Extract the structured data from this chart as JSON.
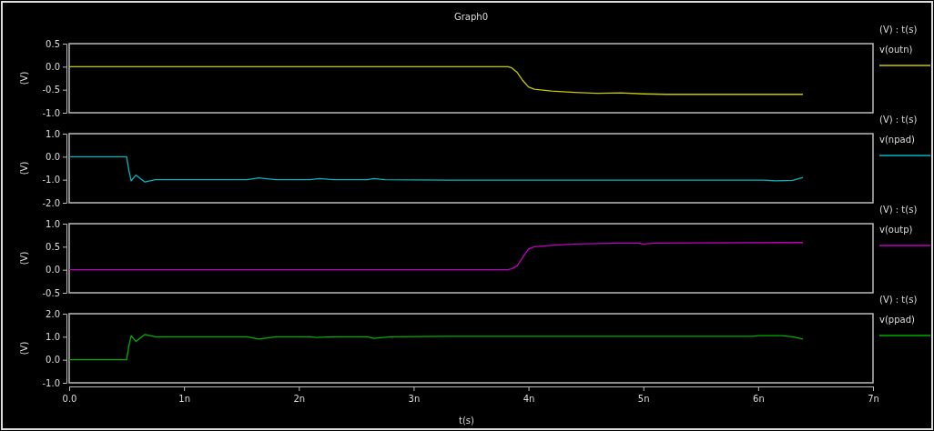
{
  "chart_data": [
    {
      "type": "line",
      "title": "Graph0",
      "ylabel": "(V)",
      "legend_title": "(V) : t(s)",
      "legend": "right",
      "grid": false,
      "tick_labels": "y",
      "xlim": [
        0,
        7
      ],
      "ylim": [
        -1.0,
        0.5
      ],
      "yticks": [
        {
          "value": 0.5,
          "label": "0.5"
        },
        {
          "value": 0,
          "label": "0.0"
        },
        {
          "value": -0.5,
          "label": "-0.5"
        },
        {
          "value": -1.0,
          "label": "-1.0"
        }
      ],
      "series": [
        {
          "name": "v(outn)",
          "color": "#c8c800",
          "x": [
            0,
            3.82,
            3.85,
            3.9,
            3.95,
            4.0,
            4.05,
            4.2,
            4.4,
            4.6,
            4.8,
            5.0,
            5.2,
            6.39
          ],
          "values": [
            0,
            0,
            -0.02,
            -0.12,
            -0.3,
            -0.44,
            -0.49,
            -0.53,
            -0.56,
            -0.58,
            -0.57,
            -0.59,
            -0.6,
            -0.6
          ]
        }
      ]
    },
    {
      "type": "line",
      "ylabel": "(V)",
      "legend_title": "(V) : t(s)",
      "legend": "right",
      "grid": false,
      "tick_labels": "y",
      "xlim": [
        0,
        7
      ],
      "ylim": [
        -2.0,
        1.0
      ],
      "yticks": [
        {
          "value": 1,
          "label": "1.0"
        },
        {
          "value": 0,
          "label": "0.0"
        },
        {
          "value": -1,
          "label": "-1.0"
        },
        {
          "value": -2,
          "label": "-2.0"
        }
      ],
      "series": [
        {
          "name": "v(npad)",
          "color": "#00b8c0",
          "x": [
            0,
            0.5,
            0.52,
            0.54,
            0.58,
            0.66,
            0.75,
            1.55,
            1.65,
            1.8,
            2.1,
            2.18,
            2.3,
            2.6,
            2.65,
            2.75,
            3.3,
            6.05,
            6.15,
            6.3,
            6.39
          ],
          "values": [
            0,
            0,
            -0.6,
            -1.05,
            -0.8,
            -1.1,
            -1.0,
            -1.0,
            -0.92,
            -1.0,
            -1.0,
            -0.95,
            -1.0,
            -1.0,
            -0.95,
            -1.0,
            -1.02,
            -1.02,
            -1.05,
            -1.03,
            -0.9
          ]
        }
      ]
    },
    {
      "type": "line",
      "ylabel": "(V)",
      "legend_title": "(V) : t(s)",
      "legend": "right",
      "grid": false,
      "tick_labels": "y",
      "xlim": [
        0,
        7
      ],
      "ylim": [
        -0.5,
        1.0
      ],
      "yticks": [
        {
          "value": 1,
          "label": "1.0"
        },
        {
          "value": 0.5,
          "label": "0.5"
        },
        {
          "value": 0,
          "label": "0.0"
        },
        {
          "value": -0.5,
          "label": "-0.5"
        }
      ],
      "series": [
        {
          "name": "v(outp)",
          "color": "#c000c0",
          "x": [
            0,
            3.82,
            3.85,
            3.9,
            3.95,
            4.0,
            4.05,
            4.2,
            4.4,
            4.6,
            4.8,
            4.95,
            5.0,
            5.1,
            6.39
          ],
          "values": [
            0,
            0,
            0.02,
            0.08,
            0.27,
            0.45,
            0.5,
            0.53,
            0.56,
            0.57,
            0.58,
            0.58,
            0.56,
            0.58,
            0.59
          ]
        }
      ]
    },
    {
      "type": "line",
      "ylabel": "(V)",
      "xlabel": "t(s)",
      "legend_title": "(V) : t(s)",
      "legend": "right",
      "grid": false,
      "xlim": [
        0,
        7
      ],
      "xticks": [
        {
          "value": 0,
          "label": "0.0"
        },
        {
          "value": 1,
          "label": "1n"
        },
        {
          "value": 2,
          "label": "2n"
        },
        {
          "value": 3,
          "label": "3n"
        },
        {
          "value": 4,
          "label": "4n"
        },
        {
          "value": 5,
          "label": "5n"
        },
        {
          "value": 6,
          "label": "6n"
        },
        {
          "value": 7,
          "label": "7n"
        }
      ],
      "ylim": [
        -1.0,
        2.0
      ],
      "yticks": [
        {
          "value": 2,
          "label": "2.0"
        },
        {
          "value": 1,
          "label": "1.0"
        },
        {
          "value": 0,
          "label": "0.0"
        },
        {
          "value": -1,
          "label": "-1.0"
        }
      ],
      "series": [
        {
          "name": "v(ppad)",
          "color": "#00b000",
          "x": [
            0,
            0.5,
            0.52,
            0.54,
            0.58,
            0.66,
            0.75,
            1.55,
            1.65,
            1.8,
            2.1,
            2.15,
            2.3,
            2.6,
            2.65,
            2.8,
            3.3,
            5.95,
            6.0,
            6.2,
            6.3,
            6.39
          ],
          "values": [
            0,
            0,
            0.6,
            1.05,
            0.8,
            1.1,
            1.0,
            1.0,
            0.9,
            1.0,
            1.0,
            0.97,
            1.0,
            1.0,
            0.93,
            1.0,
            1.02,
            1.02,
            1.05,
            1.05,
            1.0,
            0.9
          ]
        }
      ]
    }
  ]
}
